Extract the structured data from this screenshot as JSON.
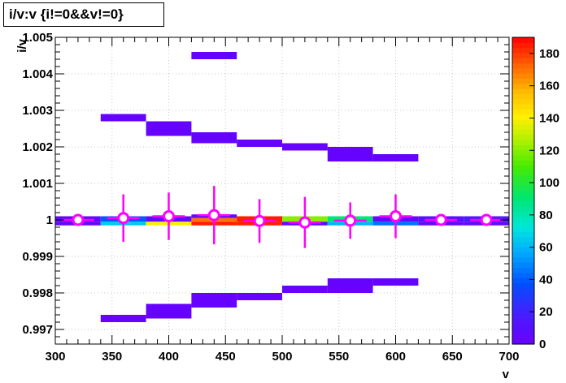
{
  "title": "i/v:v {i!=0&&v!=0}",
  "chart_data": {
    "type": "heatmap",
    "xlabel": "v",
    "ylabel": "i/v",
    "xlim": [
      300,
      700
    ],
    "ylim": [
      0.9966,
      1.005
    ],
    "xticks": [
      "300",
      "350",
      "400",
      "450",
      "500",
      "550",
      "600",
      "650",
      "700"
    ],
    "yticks": [
      "0.997",
      "0.998",
      "0.999",
      "1",
      "1.001",
      "1.002",
      "1.003",
      "1.004",
      "1.005"
    ],
    "ytick_values": [
      0.997,
      0.998,
      0.999,
      1,
      1.001,
      1.002,
      1.003,
      1.004,
      1.005
    ],
    "colorbar": {
      "min": 0,
      "max": 190,
      "ticks": [
        "0",
        "20",
        "40",
        "60",
        "80",
        "100",
        "120",
        "140",
        "160",
        "180"
      ],
      "tick_values": [
        0,
        20,
        40,
        60,
        80,
        100,
        120,
        140,
        160,
        180
      ]
    },
    "cells": [
      {
        "x": [
          300,
          340
        ],
        "y": [
          0.99995,
          1.0001
        ],
        "count": 5
      },
      {
        "x": [
          300,
          340
        ],
        "y": [
          0.99985,
          0.99995
        ],
        "count": 5
      },
      {
        "x": [
          340,
          380
        ],
        "y": [
          0.99995,
          1.0001
        ],
        "count": 40
      },
      {
        "x": [
          340,
          380
        ],
        "y": [
          0.99985,
          0.99995
        ],
        "count": 65
      },
      {
        "x": [
          380,
          420
        ],
        "y": [
          0.99995,
          1.0001
        ],
        "count": 5
      },
      {
        "x": [
          380,
          420
        ],
        "y": [
          0.99985,
          0.99995
        ],
        "count": 140
      },
      {
        "x": [
          420,
          460
        ],
        "y": [
          1.00005,
          1.00015
        ],
        "count": 5
      },
      {
        "x": [
          420,
          460
        ],
        "y": [
          0.99995,
          1.00005
        ],
        "count": 170
      },
      {
        "x": [
          420,
          460
        ],
        "y": [
          0.99985,
          0.99995
        ],
        "count": 185
      },
      {
        "x": [
          460,
          500
        ],
        "y": [
          0.99995,
          1.0001
        ],
        "count": 185
      },
      {
        "x": [
          460,
          500
        ],
        "y": [
          0.99985,
          0.99995
        ],
        "count": 185
      },
      {
        "x": [
          500,
          540
        ],
        "y": [
          0.99995,
          1.0001
        ],
        "count": 120
      },
      {
        "x": [
          500,
          540
        ],
        "y": [
          0.99985,
          0.99995
        ],
        "count": 5
      },
      {
        "x": [
          540,
          580
        ],
        "y": [
          0.99995,
          1.0001
        ],
        "count": 90
      },
      {
        "x": [
          540,
          580
        ],
        "y": [
          0.99985,
          0.99995
        ],
        "count": 60
      },
      {
        "x": [
          580,
          620
        ],
        "y": [
          0.99995,
          1.0001
        ],
        "count": 5
      },
      {
        "x": [
          580,
          620
        ],
        "y": [
          0.99985,
          0.99995
        ],
        "count": 45
      },
      {
        "x": [
          620,
          660
        ],
        "y": [
          0.99995,
          1.0001
        ],
        "count": 10
      },
      {
        "x": [
          620,
          660
        ],
        "y": [
          0.99985,
          0.99995
        ],
        "count": 5
      },
      {
        "x": [
          660,
          700
        ],
        "y": [
          0.99995,
          1.0001
        ],
        "count": 15
      },
      {
        "x": [
          660,
          700
        ],
        "y": [
          0.99985,
          0.99995
        ],
        "count": 5
      },
      {
        "x": [
          420,
          460
        ],
        "y": [
          1.0044,
          1.0046
        ],
        "count": 2
      },
      {
        "x": [
          340,
          380
        ],
        "y": [
          1.0027,
          1.0029
        ],
        "count": 2
      },
      {
        "x": [
          380,
          420
        ],
        "y": [
          1.0023,
          1.0027
        ],
        "count": 2
      },
      {
        "x": [
          420,
          460
        ],
        "y": [
          1.0021,
          1.0024
        ],
        "count": 2
      },
      {
        "x": [
          460,
          500
        ],
        "y": [
          1.002,
          1.0022
        ],
        "count": 2
      },
      {
        "x": [
          500,
          540
        ],
        "y": [
          1.0019,
          1.0021
        ],
        "count": 2
      },
      {
        "x": [
          540,
          580
        ],
        "y": [
          1.0016,
          1.002
        ],
        "count": 2
      },
      {
        "x": [
          580,
          620
        ],
        "y": [
          1.0016,
          1.0018
        ],
        "count": 2
      },
      {
        "x": [
          340,
          380
        ],
        "y": [
          0.9972,
          0.9974
        ],
        "count": 2
      },
      {
        "x": [
          380,
          420
        ],
        "y": [
          0.9973,
          0.9977
        ],
        "count": 2
      },
      {
        "x": [
          420,
          460
        ],
        "y": [
          0.9976,
          0.998
        ],
        "count": 2
      },
      {
        "x": [
          460,
          500
        ],
        "y": [
          0.9978,
          0.998
        ],
        "count": 2
      },
      {
        "x": [
          500,
          540
        ],
        "y": [
          0.998,
          0.9982
        ],
        "count": 2
      },
      {
        "x": [
          540,
          580
        ],
        "y": [
          0.998,
          0.9984
        ],
        "count": 2
      },
      {
        "x": [
          580,
          620
        ],
        "y": [
          0.9982,
          0.9984
        ],
        "count": 2
      }
    ],
    "profile": [
      {
        "x": 320,
        "y": 1.0,
        "err": 3e-05
      },
      {
        "x": 360,
        "y": 1.00005,
        "err": 0.00065
      },
      {
        "x": 400,
        "y": 1.0001,
        "err": 0.00065
      },
      {
        "x": 440,
        "y": 1.00013,
        "err": 0.0008
      },
      {
        "x": 480,
        "y": 0.99997,
        "err": 0.0006
      },
      {
        "x": 520,
        "y": 0.99993,
        "err": 0.0007
      },
      {
        "x": 560,
        "y": 0.99998,
        "err": 0.0005
      },
      {
        "x": 600,
        "y": 1.0001,
        "err": 0.0006
      },
      {
        "x": 640,
        "y": 1.0,
        "err": 3e-05
      },
      {
        "x": 680,
        "y": 1.0,
        "err": 3e-05
      }
    ]
  }
}
